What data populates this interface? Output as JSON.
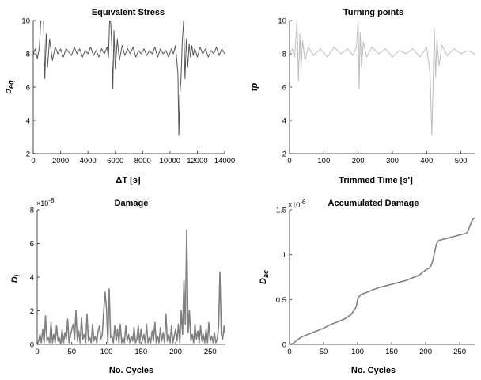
{
  "chart_data": [
    {
      "type": "line",
      "title": "Equivalent Stress",
      "xlabel": "ΔT [s]",
      "ylabel_main": "σ",
      "ylabel_sub": "eq",
      "xlim": [
        0,
        14000
      ],
      "ylim": [
        2,
        10
      ],
      "xticks": [
        0,
        2000,
        4000,
        6000,
        8000,
        10000,
        12000,
        14000
      ],
      "yticks": [
        2,
        4,
        6,
        8,
        10
      ],
      "color": "#555555",
      "x": [
        0,
        150,
        300,
        450,
        550,
        650,
        750,
        850,
        950,
        1050,
        1200,
        1400,
        1600,
        1800,
        2000,
        2200,
        2400,
        2600,
        2800,
        3000,
        3200,
        3400,
        3600,
        3800,
        4000,
        4200,
        4400,
        4600,
        4800,
        5000,
        5200,
        5400,
        5500,
        5580,
        5660,
        5740,
        5820,
        5900,
        6000,
        6150,
        6300,
        6500,
        6700,
        6900,
        7100,
        7300,
        7500,
        7700,
        7900,
        8100,
        8300,
        8500,
        8700,
        8900,
        9100,
        9300,
        9500,
        9700,
        9900,
        10100,
        10250,
        10400,
        10500,
        10580,
        10650,
        10720,
        10800,
        10900,
        11000,
        11100,
        11200,
        11300,
        11400,
        11500,
        11600,
        11700,
        11800,
        11900,
        12000,
        12200,
        12400,
        12600,
        12800,
        13000,
        13200,
        13400,
        13600,
        13800,
        14000
      ],
      "y": [
        8.0,
        8.3,
        7.7,
        8.4,
        10,
        10,
        10,
        6.5,
        9.2,
        7.2,
        8.9,
        7.6,
        8.4,
        8.0,
        8.3,
        7.8,
        8.3,
        8.1,
        7.9,
        8.4,
        8.0,
        8.3,
        7.8,
        8.2,
        8.0,
        8.4,
        7.9,
        8.2,
        7.8,
        8.3,
        8.0,
        8.4,
        7.8,
        10,
        10,
        8.6,
        5.9,
        9.4,
        7.1,
        8.9,
        7.6,
        8.5,
        7.9,
        8.3,
        8.0,
        8.4,
        7.8,
        8.2,
        8.0,
        8.3,
        7.9,
        8.2,
        8.0,
        8.4,
        7.8,
        8.3,
        8.0,
        8.2,
        7.8,
        8.3,
        8.0,
        8.5,
        7.6,
        6.8,
        3.1,
        5.5,
        6.4,
        8.7,
        10,
        6.5,
        8.9,
        7.2,
        8.6,
        7.8,
        8.5,
        7.9,
        8.3,
        8.1,
        7.8,
        8.4,
        8.0,
        8.3,
        7.8,
        8.2,
        8.0,
        8.4,
        7.9,
        8.3,
        8.0
      ]
    },
    {
      "type": "line",
      "title": "Turning points",
      "xlabel": "Trimmed Time [s']",
      "ylabel_main": "tp",
      "ylabel_sub": "",
      "xlim": [
        0,
        540
      ],
      "ylim": [
        2,
        10
      ],
      "xticks": [
        0,
        100,
        200,
        300,
        400,
        500
      ],
      "yticks": [
        2,
        4,
        6,
        8,
        10
      ],
      "color": "#bdbdbd",
      "x": [
        0,
        8,
        15,
        22,
        26,
        30,
        34,
        38,
        45,
        55,
        70,
        90,
        110,
        130,
        150,
        170,
        185,
        195,
        200,
        203,
        206,
        210,
        215,
        225,
        240,
        260,
        280,
        300,
        320,
        340,
        360,
        380,
        400,
        410,
        415,
        419,
        422,
        426,
        430,
        436,
        445,
        460,
        480,
        500,
        520,
        540
      ],
      "y": [
        8.0,
        8.3,
        7.8,
        10,
        6.4,
        9.2,
        7.1,
        8.8,
        7.6,
        8.4,
        7.9,
        8.3,
        7.8,
        8.4,
        8.0,
        8.3,
        7.9,
        8.4,
        10,
        5.9,
        9.3,
        7.2,
        8.7,
        7.8,
        8.4,
        8.0,
        8.3,
        7.8,
        8.2,
        8.0,
        8.3,
        7.8,
        8.4,
        6.8,
        3.1,
        6.4,
        9.5,
        6.6,
        8.9,
        7.3,
        8.5,
        7.9,
        8.3,
        8.0,
        8.2,
        8.0
      ]
    },
    {
      "type": "line",
      "title": "Damage",
      "xlabel": "No. Cycles",
      "ylabel_main": "D",
      "ylabel_sub": "i",
      "exponent": "-8",
      "xlim": [
        0,
        272
      ],
      "ylim": [
        0,
        8
      ],
      "xticks": [
        0,
        50,
        100,
        150,
        200,
        250
      ],
      "yticks": [
        0,
        2,
        4,
        6,
        8
      ],
      "color": "#808080",
      "x": [
        0,
        2,
        4,
        6,
        8,
        10,
        12,
        14,
        16,
        18,
        20,
        22,
        24,
        26,
        28,
        30,
        32,
        34,
        36,
        38,
        40,
        42,
        44,
        46,
        48,
        50,
        52,
        54,
        56,
        58,
        60,
        62,
        64,
        66,
        68,
        70,
        72,
        74,
        76,
        78,
        80,
        82,
        84,
        86,
        88,
        90,
        92,
        94,
        96,
        98,
        100,
        102,
        104,
        106,
        108,
        110,
        112,
        114,
        116,
        118,
        120,
        122,
        124,
        126,
        128,
        130,
        132,
        134,
        136,
        138,
        140,
        142,
        144,
        146,
        148,
        150,
        152,
        154,
        156,
        158,
        160,
        162,
        164,
        166,
        168,
        170,
        172,
        174,
        176,
        178,
        180,
        182,
        184,
        186,
        188,
        190,
        192,
        194,
        196,
        198,
        200,
        202,
        204,
        206,
        208,
        210,
        212,
        214,
        216,
        218,
        220,
        222,
        224,
        226,
        228,
        230,
        232,
        234,
        236,
        238,
        240,
        242,
        244,
        246,
        248,
        250,
        252,
        254,
        256,
        258,
        260,
        262,
        264,
        266,
        268,
        270,
        272
      ],
      "y": [
        0,
        0.2,
        0.6,
        0.1,
        0.9,
        0.1,
        1.7,
        0.2,
        0.4,
        0.1,
        1.3,
        0.1,
        0.6,
        0.1,
        1.1,
        0.2,
        0.4,
        0,
        0.9,
        0.1,
        0.7,
        0.3,
        1.5,
        0.1,
        0.5,
        0.9,
        1.2,
        0.3,
        2.0,
        0.2,
        0.8,
        0.1,
        1.6,
        0.3,
        0.6,
        0.1,
        1.8,
        0.2,
        0.4,
        0.1,
        1.2,
        0.2,
        0.5,
        0.1,
        0.8,
        1.1,
        0.3,
        0.6,
        1.9,
        3.1,
        2.2,
        0.1,
        3.3,
        0.4,
        0.5,
        0.1,
        1.1,
        0.2,
        0.9,
        0.1,
        1.2,
        0.1,
        0.4,
        0.1,
        1.1,
        0.2,
        0.6,
        0.1,
        0.5,
        0.2,
        1.0,
        0.1,
        0.3,
        1.1,
        0.1,
        0.9,
        0.2,
        0.6,
        0.1,
        1.2,
        0.1,
        0.4,
        0.1,
        0.8,
        0.2,
        1.3,
        0.1,
        0.5,
        0.1,
        1.0,
        0.2,
        0.7,
        0.1,
        1.8,
        0.2,
        0.6,
        0.1,
        1.1,
        0.1,
        0.5,
        0.9,
        0.2,
        1.2,
        0.1,
        2.0,
        0.6,
        3.8,
        1.2,
        6.8,
        0.7,
        2.0,
        0.2,
        0.6,
        0.1,
        1.2,
        0.3,
        0.8,
        0.1,
        1.1,
        0.2,
        0.6,
        0.1,
        0.9,
        0.1,
        1.3,
        0.2,
        0.5,
        0.1,
        0.7,
        0.1,
        0.3,
        1.0,
        4.3,
        0.6,
        0.3,
        1.1,
        0.5
      ]
    },
    {
      "type": "line",
      "title": "Accumulated Damage",
      "xlabel": "No. Cycles",
      "ylabel_main": "D",
      "ylabel_sub": "ac",
      "exponent": "-6",
      "xlim": [
        0,
        272
      ],
      "ylim": [
        0,
        1.5
      ],
      "xticks": [
        0,
        50,
        100,
        150,
        200,
        250
      ],
      "yticks": [
        0,
        0.5,
        1,
        1.5
      ],
      "ytick_labels": [
        "0",
        "0.5",
        "1",
        "1.5"
      ],
      "color": "#808080",
      "x": [
        0,
        5,
        10,
        15,
        20,
        30,
        40,
        50,
        60,
        70,
        80,
        90,
        95,
        98,
        100,
        102,
        104,
        106,
        110,
        120,
        130,
        140,
        150,
        160,
        170,
        180,
        190,
        195,
        200,
        205,
        208,
        210,
        212,
        214,
        216,
        218,
        220,
        230,
        240,
        250,
        255,
        260,
        262,
        265,
        268,
        270,
        272
      ],
      "y": [
        0,
        0.01,
        0.04,
        0.07,
        0.09,
        0.12,
        0.15,
        0.18,
        0.22,
        0.25,
        0.28,
        0.33,
        0.38,
        0.42,
        0.5,
        0.53,
        0.55,
        0.56,
        0.57,
        0.6,
        0.63,
        0.65,
        0.67,
        0.69,
        0.71,
        0.74,
        0.77,
        0.8,
        0.83,
        0.85,
        0.88,
        0.92,
        0.99,
        1.06,
        1.12,
        1.15,
        1.16,
        1.18,
        1.2,
        1.22,
        1.23,
        1.24,
        1.26,
        1.32,
        1.38,
        1.4,
        1.41
      ]
    }
  ]
}
